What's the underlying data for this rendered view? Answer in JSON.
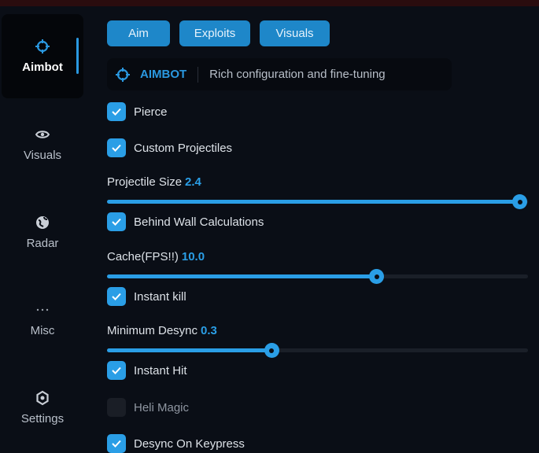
{
  "sidebar": {
    "items": [
      {
        "label": "Aimbot",
        "icon": "crosshair-icon",
        "active": true
      },
      {
        "label": "Visuals",
        "icon": "eye-icon"
      },
      {
        "label": "Radar",
        "icon": "globe-icon"
      },
      {
        "label": "Misc",
        "icon": "ellipsis-icon"
      },
      {
        "label": "Settings",
        "icon": "gear-icon"
      }
    ]
  },
  "tabs": [
    "Aim",
    "Exploits",
    "Visuals"
  ],
  "header": {
    "title": "AIMBOT",
    "description": "Rich configuration and fine-tuning",
    "icon": "crosshair-icon"
  },
  "controls": {
    "pierce": {
      "label": "Pierce",
      "checked": true
    },
    "custom_projectiles": {
      "label": "Custom Projectiles",
      "checked": true
    },
    "projectile_size": {
      "label": "Projectile Size",
      "value": "2.4",
      "fill": 0.98
    },
    "behind_wall": {
      "label": "Behind Wall Calculations",
      "checked": true
    },
    "cache": {
      "label": "Cache(FPS!!)",
      "value": "10.0",
      "fill": 0.64
    },
    "instant_kill": {
      "label": "Instant kill",
      "checked": true
    },
    "min_desync": {
      "label": "Minimum Desync",
      "value": "0.3",
      "fill": 0.39
    },
    "instant_hit": {
      "label": "Instant Hit",
      "checked": true
    },
    "heli_magic": {
      "label": "Heli Magic",
      "checked": false
    },
    "desync_keypress": {
      "label": "Desync On Keypress",
      "checked": true
    }
  },
  "colors": {
    "accent": "#2a9ee6",
    "background": "#0a0e16"
  }
}
